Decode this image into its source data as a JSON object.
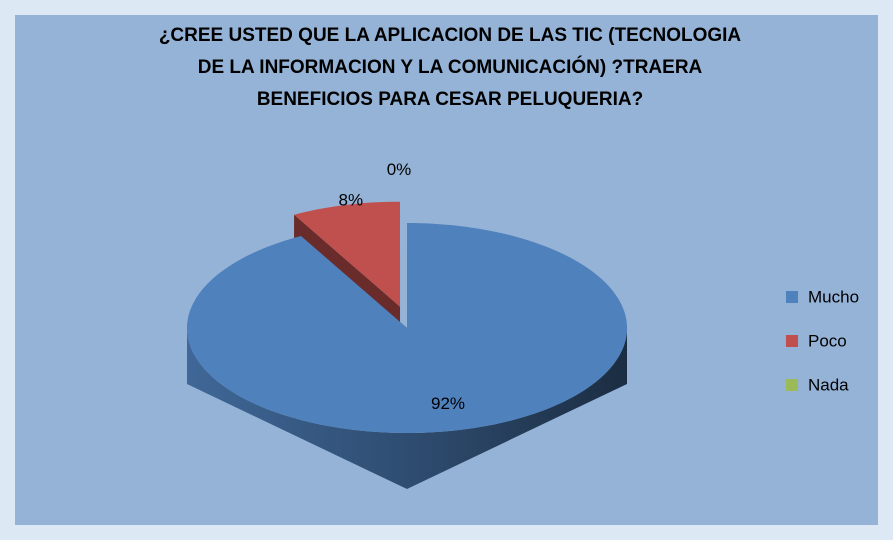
{
  "chart_data": {
    "type": "pie3d",
    "title": [
      "¿CREE USTED QUE LA APLICACION DE LAS TIC (TECNOLOGIA",
      "DE LA INFORMACION Y LA COMUNICACIÓN) ?TRAERA",
      "BENEFICIOS PARA CESAR PELUQUERIA?"
    ],
    "categories": [
      "Mucho",
      "Poco",
      "Nada"
    ],
    "values": [
      92,
      8,
      0
    ],
    "value_labels": [
      "92%",
      "8%",
      "0%"
    ],
    "colors": [
      "#4f81bd",
      "#c0504d",
      "#9bbb59"
    ],
    "legend": "right"
  }
}
